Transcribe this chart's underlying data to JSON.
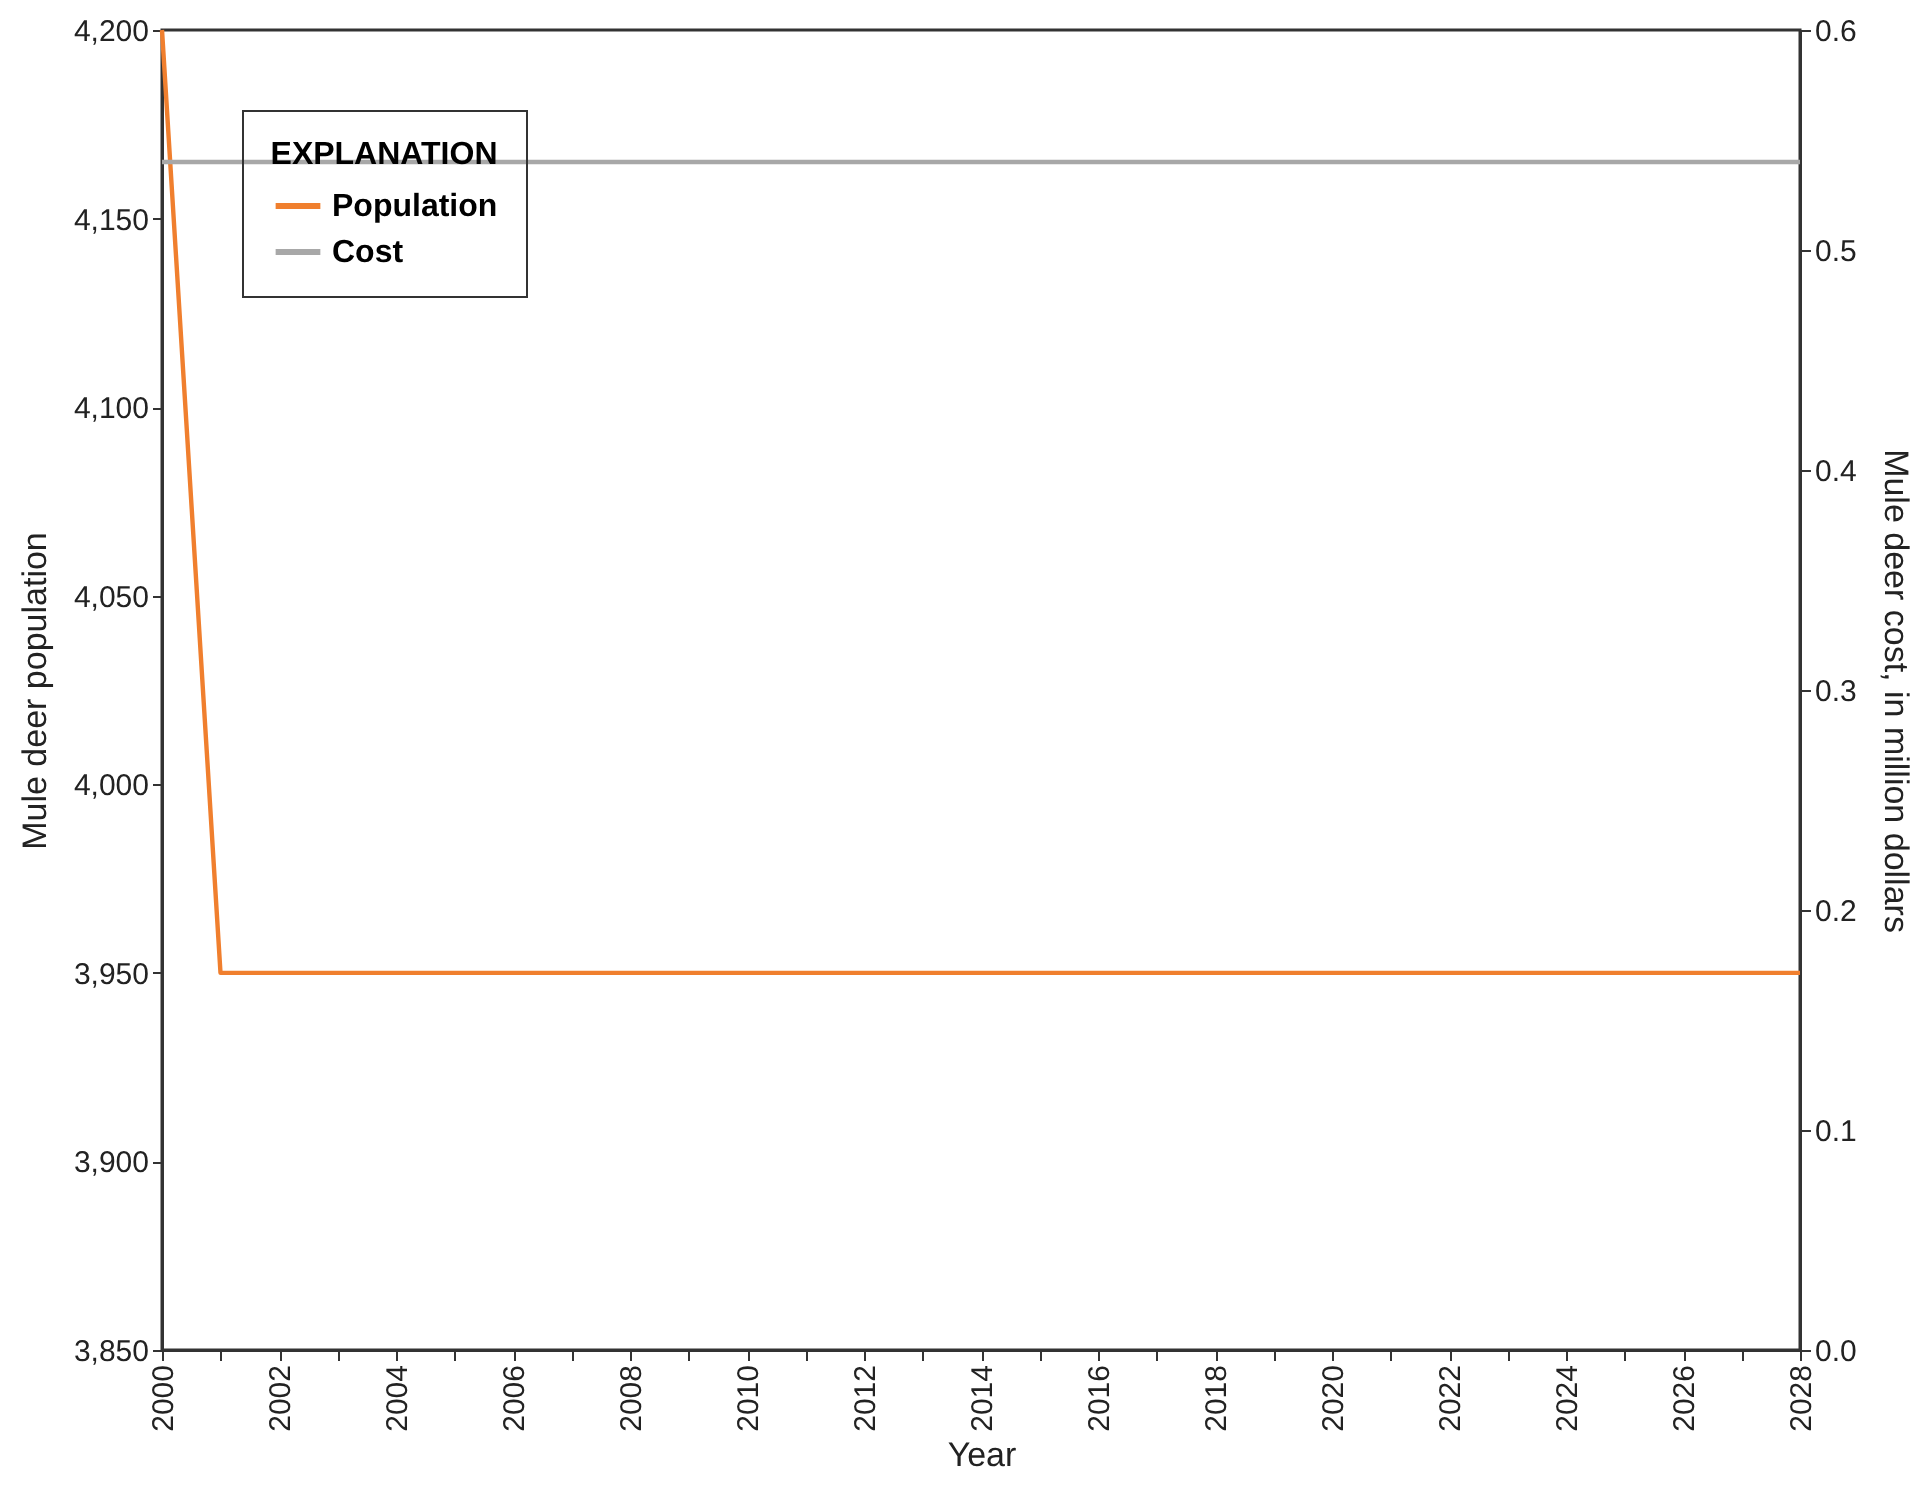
{
  "chart_data": {
    "type": "line",
    "xlabel": "Year",
    "ylabel": "Mule deer population",
    "y2label": "Mule deer cost, in million dollars",
    "legend_title": "EXPLANATION",
    "legend": "top left",
    "grid": false,
    "line_style": "solid",
    "marker": "none",
    "x": [
      2000,
      2001,
      2002,
      2003,
      2004,
      2005,
      2006,
      2007,
      2008,
      2009,
      2010,
      2011,
      2012,
      2013,
      2014,
      2015,
      2016,
      2017,
      2018,
      2019,
      2020,
      2021,
      2022,
      2023,
      2024,
      2025,
      2026,
      2027,
      2028
    ],
    "series": [
      {
        "name": "Population",
        "color": "#f07f2e",
        "values": [
          4200,
          3950,
          3950,
          3950,
          3950,
          3950,
          3950,
          3950,
          3950,
          3950,
          3950,
          3950,
          3950,
          3950,
          3950,
          3950,
          3950,
          3950,
          3950,
          3950,
          3950,
          3950,
          3950,
          3950,
          3950,
          3950,
          3950,
          3950,
          3950
        ]
      },
      {
        "name": "Cost",
        "color": "#a8a8a8",
        "axis": "y2",
        "values": [
          0.54,
          0.54,
          0.54,
          0.54,
          0.54,
          0.54,
          0.54,
          0.54,
          0.54,
          0.54,
          0.54,
          0.54,
          0.54,
          0.54,
          0.54,
          0.54,
          0.54,
          0.54,
          0.54,
          0.54,
          0.54,
          0.54,
          0.54,
          0.54,
          0.54,
          0.54,
          0.54,
          0.54,
          0.54
        ]
      }
    ],
    "xlim": [
      2000,
      2028
    ],
    "xticks": [
      2000,
      {
        "value": 2001,
        "label": null
      },
      2002,
      {
        "value": 2003,
        "label": null
      },
      2004,
      {
        "value": 2005,
        "label": null
      },
      2006,
      {
        "value": 2007,
        "label": null
      },
      2008,
      {
        "value": 2009,
        "label": null
      },
      2010,
      {
        "value": 2011,
        "label": null
      },
      2012,
      {
        "value": 2013,
        "label": null
      },
      2014,
      {
        "value": 2015,
        "label": null
      },
      2016,
      {
        "value": 2017,
        "label": null
      },
      2018,
      {
        "value": 2019,
        "label": null
      },
      2020,
      {
        "value": 2021,
        "label": null
      },
      2022,
      {
        "value": 2023,
        "label": null
      },
      2024,
      {
        "value": 2025,
        "label": null
      },
      2026,
      {
        "value": 2027,
        "label": null
      },
      2028
    ],
    "ylim": [
      3850,
      4200
    ],
    "yticks": [
      {
        "value": 3850,
        "label": "3,850"
      },
      {
        "value": 3900,
        "label": "3,900"
      },
      {
        "value": 3950,
        "label": "3,950"
      },
      {
        "value": 4000,
        "label": "4,000"
      },
      {
        "value": 4050,
        "label": "4,050"
      },
      {
        "value": 4100,
        "label": "4,100"
      },
      {
        "value": 4150,
        "label": "4,150"
      },
      {
        "value": 4200,
        "label": "4,200"
      }
    ],
    "y2lim": [
      0.0,
      0.6
    ],
    "y2ticks": [
      {
        "value": 0,
        "label": "0.0"
      },
      0.1,
      0.2,
      0.3,
      0.4,
      0.5,
      0.6
    ]
  }
}
